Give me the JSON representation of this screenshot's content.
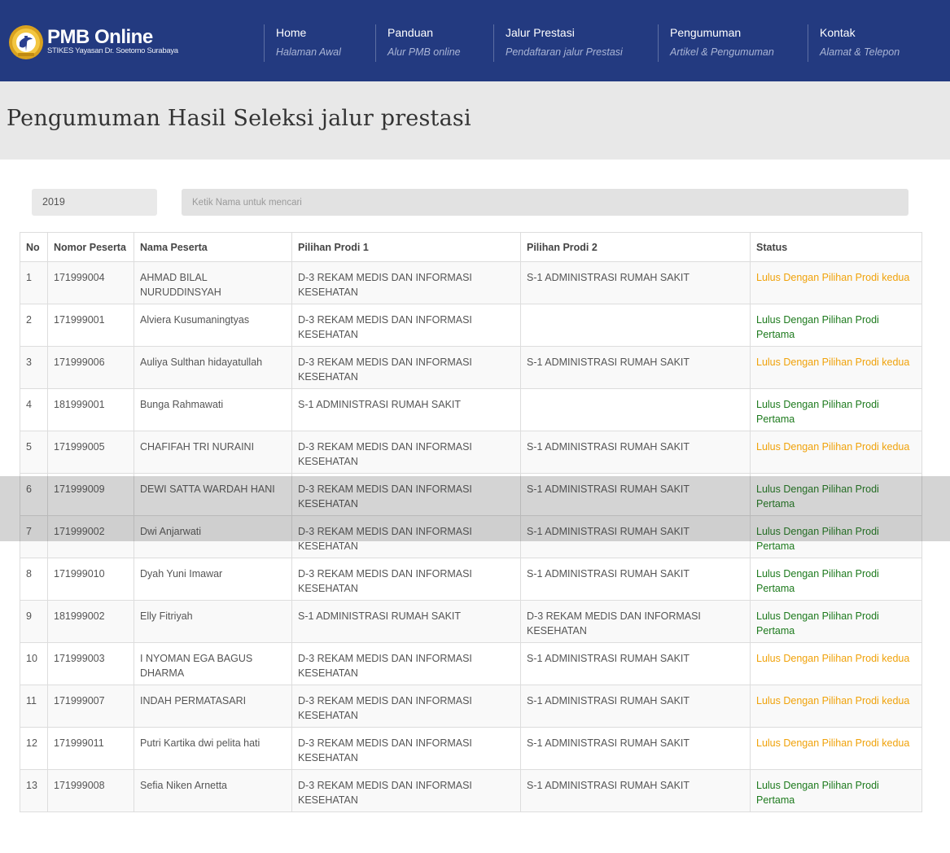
{
  "brand": {
    "title": "PMB Online",
    "subtitle": "STIKES Yayasan Dr. Soetomo Surabaya"
  },
  "nav": [
    {
      "title": "Home",
      "sub": "Halaman Awal"
    },
    {
      "title": "Panduan",
      "sub": "Alur PMB online"
    },
    {
      "title": "Jalur Prestasi",
      "sub": "Pendaftaran jalur Prestasi"
    },
    {
      "title": "Pengumuman",
      "sub": "Artikel & Pengumuman"
    },
    {
      "title": "Kontak",
      "sub": "Alamat & Telepon"
    }
  ],
  "page": {
    "title": "Pengumuman Hasil Seleksi jalur prestasi"
  },
  "filter": {
    "year": "2019",
    "search_placeholder": "Ketik Nama untuk mencari",
    "search_value": ""
  },
  "table": {
    "headers": [
      "No",
      "Nomor Peserta",
      "Nama Peserta",
      "Pilihan Prodi 1",
      "Pilihan Prodi 2",
      "Status"
    ],
    "rows": [
      [
        "1",
        "171999004",
        "AHMAD BILAL NURUDDINSYAH",
        "D-3 REKAM MEDIS DAN INFORMASI KESEHATAN",
        "S-1 ADMINISTRASI RUMAH SAKIT",
        "Lulus Dengan Pilihan Prodi kedua"
      ],
      [
        "2",
        "171999001",
        "Alviera Kusumaningtyas",
        "D-3 REKAM MEDIS DAN INFORMASI KESEHATAN",
        "",
        "Lulus Dengan Pilihan Prodi Pertama"
      ],
      [
        "3",
        "171999006",
        "Auliya Sulthan hidayatullah",
        "D-3 REKAM MEDIS DAN INFORMASI KESEHATAN",
        "S-1 ADMINISTRASI RUMAH SAKIT",
        "Lulus Dengan Pilihan Prodi kedua"
      ],
      [
        "4",
        "181999001",
        "Bunga Rahmawati",
        "S-1 ADMINISTRASI RUMAH SAKIT",
        "",
        "Lulus Dengan Pilihan Prodi Pertama"
      ],
      [
        "5",
        "171999005",
        "CHAFIFAH TRI NURAINI",
        "D-3 REKAM MEDIS DAN INFORMASI KESEHATAN",
        "S-1 ADMINISTRASI RUMAH SAKIT",
        "Lulus Dengan Pilihan Prodi kedua"
      ],
      [
        "6",
        "171999009",
        "DEWI SATTA WARDAH HANI",
        "D-3 REKAM MEDIS DAN INFORMASI KESEHATAN",
        "S-1 ADMINISTRASI RUMAH SAKIT",
        "Lulus Dengan Pilihan Prodi Pertama"
      ],
      [
        "7",
        "171999002",
        "Dwi Anjarwati",
        "D-3 REKAM MEDIS DAN INFORMASI KESEHATAN",
        "S-1 ADMINISTRASI RUMAH SAKIT",
        "Lulus Dengan Pilihan Prodi Pertama"
      ],
      [
        "8",
        "171999010",
        "Dyah Yuni Imawar",
        "D-3 REKAM MEDIS DAN INFORMASI KESEHATAN",
        "S-1 ADMINISTRASI RUMAH SAKIT",
        "Lulus Dengan Pilihan Prodi Pertama"
      ],
      [
        "9",
        "181999002",
        "Elly Fitriyah",
        "S-1 ADMINISTRASI RUMAH SAKIT",
        "D-3 REKAM MEDIS DAN INFORMASI KESEHATAN",
        "Lulus Dengan Pilihan Prodi Pertama"
      ],
      [
        "10",
        "171999003",
        "I NYOMAN EGA BAGUS DHARMA",
        "D-3 REKAM MEDIS DAN INFORMASI KESEHATAN",
        "S-1 ADMINISTRASI RUMAH SAKIT",
        "Lulus Dengan Pilihan Prodi kedua"
      ],
      [
        "11",
        "171999007",
        "INDAH PERMATASARI",
        "D-3 REKAM MEDIS DAN INFORMASI KESEHATAN",
        "S-1 ADMINISTRASI RUMAH SAKIT",
        "Lulus Dengan Pilihan Prodi kedua"
      ],
      [
        "12",
        "171999011",
        "Putri Kartika dwi pelita hati",
        "D-3 REKAM MEDIS DAN INFORMASI KESEHATAN",
        "S-1 ADMINISTRASI RUMAH SAKIT",
        "Lulus Dengan Pilihan Prodi kedua"
      ],
      [
        "13",
        "171999008",
        "Sefia Niken Arnetta",
        "D-3 REKAM MEDIS DAN INFORMASI KESEHATAN",
        "S-1 ADMINISTRASI RUMAH SAKIT",
        "Lulus Dengan Pilihan Prodi Pertama"
      ]
    ]
  },
  "colors": {
    "header_bg": "#233a80",
    "status_pertama": "#1d7a1d",
    "status_kedua": "#f0a20a"
  }
}
